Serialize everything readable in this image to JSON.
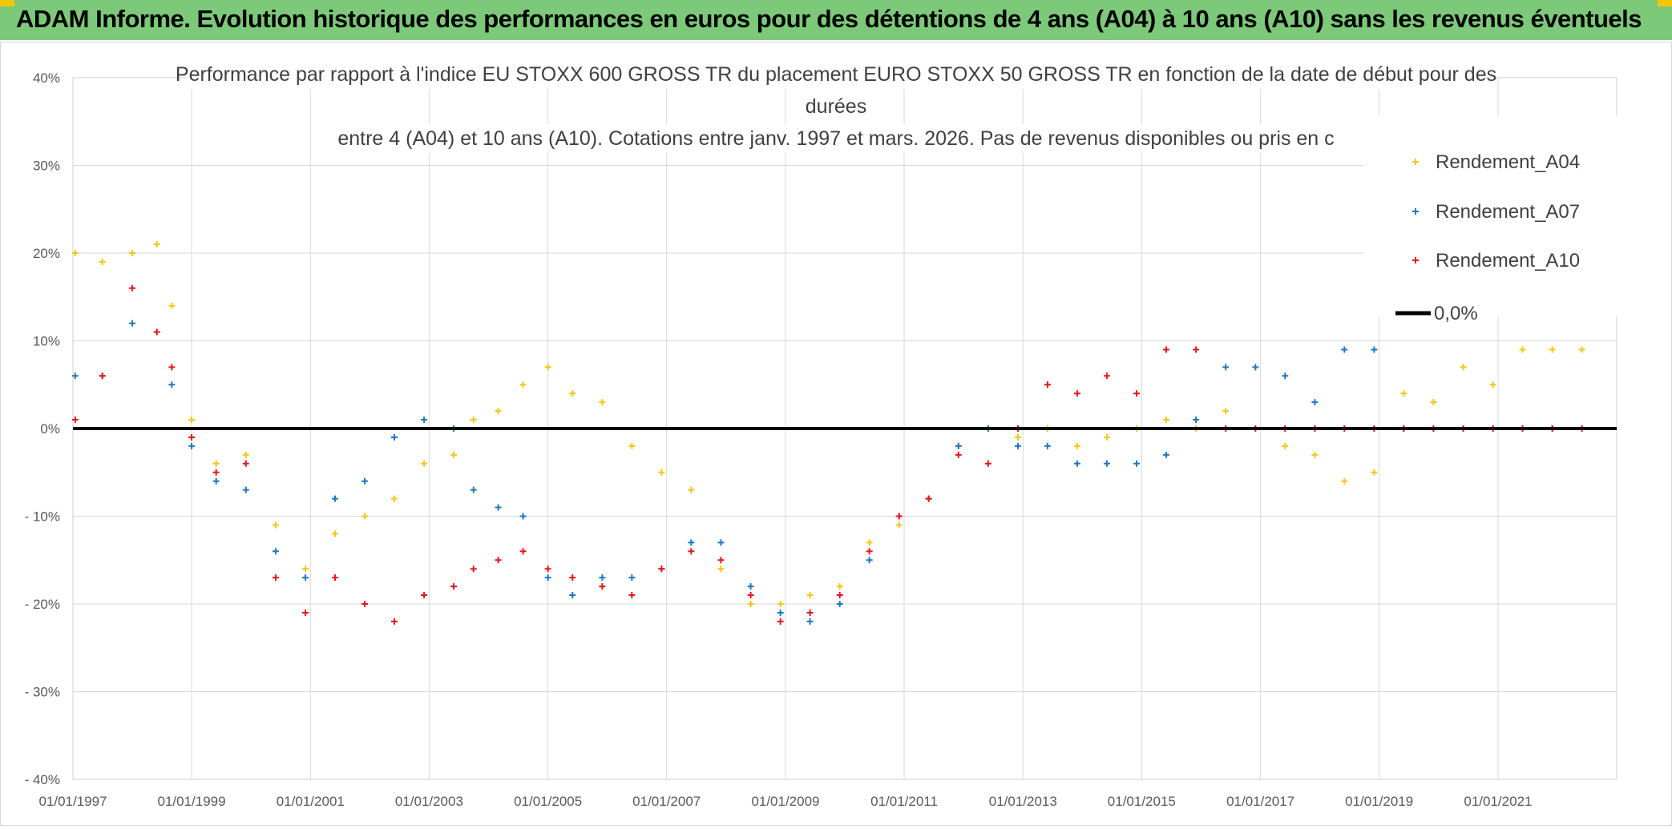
{
  "banner": {
    "title": "ADAM Informe. Evolution historique des performances en euros pour des détentions de 4 ans (A04) à 10 ans (A10) sans les revenus éventuels"
  },
  "colors": {
    "banner_bg": "#7dc97a",
    "accent_corner": "#f2c600",
    "A04": "#f5c518",
    "A07": "#1f77c4",
    "A10": "#e8141c",
    "zero": "#000000",
    "grid": "#d9d9d9"
  },
  "chart_data": {
    "type": "scatter",
    "title_lines": [
      "Performance par rapport à l'indice EU STOXX 600 GROSS TR  du placement EURO STOXX 50 GROSS TR en fonction de la date de début pour des",
      "durées",
      "entre 4 (A04) et 10 ans (A10). Cotations entre janv. 1997 et mars. 2026. Pas de revenus disponibles ou pris en c"
    ],
    "xlabel": "",
    "ylabel": "",
    "x_tick_labels": [
      "01/01/1997",
      "01/01/1999",
      "01/01/2001",
      "01/01/2003",
      "01/01/2005",
      "01/01/2007",
      "01/01/2009",
      "01/01/2011",
      "01/01/2013",
      "01/01/2015",
      "01/01/2017",
      "01/01/2019",
      "01/01/2021"
    ],
    "xlim": [
      "1997-01-01",
      "2023-01-01"
    ],
    "ylim": [
      -40,
      40
    ],
    "y_ticks": [
      40,
      30,
      20,
      10,
      0,
      -10,
      -20,
      -30,
      -40
    ],
    "y_tick_labels": [
      "40%",
      "30%",
      "20%",
      "10%",
      "0%",
      "- 10%",
      "- 20%",
      "- 30%",
      "- 40%"
    ],
    "grid": true,
    "legend_position": "top-right",
    "series": [
      {
        "name": "Rendement_A04",
        "marker": "plus",
        "points": [
          [
            "1997-01-15",
            20
          ],
          [
            "1997-07-01",
            19
          ],
          [
            "1998-01-01",
            20
          ],
          [
            "1998-06-01",
            21
          ],
          [
            "1998-09-01",
            14
          ],
          [
            "1999-01-01",
            1
          ],
          [
            "1999-06-01",
            -4
          ],
          [
            "1999-12-01",
            -3
          ],
          [
            "2000-06-01",
            -11
          ],
          [
            "2000-12-01",
            -16
          ],
          [
            "2001-06-01",
            -12
          ],
          [
            "2001-12-01",
            -10
          ],
          [
            "2002-06-01",
            -8
          ],
          [
            "2002-12-01",
            -4
          ],
          [
            "2003-06-01",
            -3
          ],
          [
            "2003-10-01",
            1
          ],
          [
            "2004-03-01",
            2
          ],
          [
            "2004-08-01",
            5
          ],
          [
            "2005-01-01",
            7
          ],
          [
            "2005-06-01",
            4
          ],
          [
            "2005-12-01",
            3
          ],
          [
            "2006-06-01",
            -2
          ],
          [
            "2006-12-01",
            -5
          ],
          [
            "2007-06-01",
            -7
          ],
          [
            "2007-12-01",
            -16
          ],
          [
            "2008-06-01",
            -20
          ],
          [
            "2008-12-01",
            -20
          ],
          [
            "2009-06-01",
            -19
          ],
          [
            "2009-12-01",
            -18
          ],
          [
            "2010-06-01",
            -13
          ],
          [
            "2010-12-01",
            -11
          ],
          [
            "2011-06-01",
            -8
          ],
          [
            "2011-12-01",
            -2
          ],
          [
            "2012-06-01",
            0
          ],
          [
            "2012-12-01",
            -1
          ],
          [
            "2013-06-01",
            0
          ],
          [
            "2013-12-01",
            -2
          ],
          [
            "2014-06-01",
            -1
          ],
          [
            "2014-12-01",
            0
          ],
          [
            "2015-06-01",
            1
          ],
          [
            "2015-12-01",
            0
          ],
          [
            "2016-06-01",
            2
          ],
          [
            "2016-12-01",
            0
          ],
          [
            "2017-06-01",
            -2
          ],
          [
            "2017-12-01",
            -3
          ],
          [
            "2018-06-01",
            -6
          ],
          [
            "2018-12-01",
            -5
          ],
          [
            "2019-06-01",
            4
          ],
          [
            "2019-12-01",
            3
          ],
          [
            "2020-06-01",
            7
          ],
          [
            "2020-12-01",
            5
          ],
          [
            "2021-06-01",
            9
          ],
          [
            "2021-12-01",
            9
          ],
          [
            "2022-06-01",
            9
          ]
        ]
      },
      {
        "name": "Rendement_A07",
        "marker": "plus",
        "points": [
          [
            "1997-01-15",
            6
          ],
          [
            "1997-07-01",
            6
          ],
          [
            "1998-01-01",
            12
          ],
          [
            "1998-06-01",
            11
          ],
          [
            "1998-09-01",
            5
          ],
          [
            "1999-01-01",
            -2
          ],
          [
            "1999-06-01",
            -6
          ],
          [
            "1999-12-01",
            -7
          ],
          [
            "2000-06-01",
            -14
          ],
          [
            "2000-12-01",
            -17
          ],
          [
            "2001-06-01",
            -8
          ],
          [
            "2001-12-01",
            -6
          ],
          [
            "2002-06-01",
            -1
          ],
          [
            "2002-12-01",
            1
          ],
          [
            "2003-06-01",
            0
          ],
          [
            "2003-10-01",
            -7
          ],
          [
            "2004-03-01",
            -9
          ],
          [
            "2004-08-01",
            -10
          ],
          [
            "2005-01-01",
            -17
          ],
          [
            "2005-06-01",
            -19
          ],
          [
            "2005-12-01",
            -17
          ],
          [
            "2006-06-01",
            -17
          ],
          [
            "2006-12-01",
            -16
          ],
          [
            "2007-06-01",
            -13
          ],
          [
            "2007-12-01",
            -13
          ],
          [
            "2008-06-01",
            -18
          ],
          [
            "2008-12-01",
            -21
          ],
          [
            "2009-06-01",
            -22
          ],
          [
            "2009-12-01",
            -20
          ],
          [
            "2010-06-01",
            -15
          ],
          [
            "2010-12-01",
            -10
          ],
          [
            "2011-06-01",
            -8
          ],
          [
            "2011-12-01",
            -2
          ],
          [
            "2012-06-01",
            0
          ],
          [
            "2012-12-01",
            -2
          ],
          [
            "2013-06-01",
            -2
          ],
          [
            "2013-12-01",
            -4
          ],
          [
            "2014-06-01",
            -4
          ],
          [
            "2014-12-01",
            -4
          ],
          [
            "2015-06-01",
            -3
          ],
          [
            "2015-12-01",
            1
          ],
          [
            "2016-06-01",
            7
          ],
          [
            "2016-12-01",
            7
          ],
          [
            "2017-06-01",
            6
          ],
          [
            "2017-12-01",
            3
          ],
          [
            "2018-06-01",
            9
          ],
          [
            "2018-12-01",
            9
          ],
          [
            "2019-06-01",
            0
          ],
          [
            "2019-12-01",
            0
          ],
          [
            "2020-06-01",
            0
          ],
          [
            "2020-12-01",
            0
          ],
          [
            "2021-06-01",
            0
          ],
          [
            "2021-12-01",
            0
          ],
          [
            "2022-06-01",
            0
          ]
        ]
      },
      {
        "name": "Rendement_A10",
        "marker": "plus",
        "points": [
          [
            "1997-01-15",
            1
          ],
          [
            "1997-07-01",
            6
          ],
          [
            "1998-01-01",
            16
          ],
          [
            "1998-06-01",
            11
          ],
          [
            "1998-09-01",
            7
          ],
          [
            "1999-01-01",
            -1
          ],
          [
            "1999-06-01",
            -5
          ],
          [
            "1999-12-01",
            -4
          ],
          [
            "2000-06-01",
            -17
          ],
          [
            "2000-12-01",
            -21
          ],
          [
            "2001-06-01",
            -17
          ],
          [
            "2001-12-01",
            -20
          ],
          [
            "2002-06-01",
            -22
          ],
          [
            "2002-12-01",
            -19
          ],
          [
            "2003-06-01",
            -18
          ],
          [
            "2003-10-01",
            -16
          ],
          [
            "2004-03-01",
            -15
          ],
          [
            "2004-08-01",
            -14
          ],
          [
            "2005-01-01",
            -16
          ],
          [
            "2005-06-01",
            -17
          ],
          [
            "2005-12-01",
            -18
          ],
          [
            "2006-06-01",
            -19
          ],
          [
            "2006-12-01",
            -16
          ],
          [
            "2007-06-01",
            -14
          ],
          [
            "2007-12-01",
            -15
          ],
          [
            "2008-06-01",
            -19
          ],
          [
            "2008-12-01",
            -22
          ],
          [
            "2009-06-01",
            -21
          ],
          [
            "2009-12-01",
            -19
          ],
          [
            "2010-06-01",
            -14
          ],
          [
            "2010-12-01",
            -10
          ],
          [
            "2011-06-01",
            -8
          ],
          [
            "2011-12-01",
            -3
          ],
          [
            "2012-06-01",
            -4
          ],
          [
            "2012-12-01",
            0
          ],
          [
            "2013-06-01",
            5
          ],
          [
            "2013-12-01",
            4
          ],
          [
            "2014-06-01",
            6
          ],
          [
            "2014-12-01",
            4
          ],
          [
            "2015-06-01",
            9
          ],
          [
            "2015-12-01",
            9
          ],
          [
            "2016-06-01",
            0
          ],
          [
            "2016-12-01",
            0
          ],
          [
            "2017-06-01",
            0
          ],
          [
            "2017-12-01",
            0
          ],
          [
            "2018-06-01",
            0
          ],
          [
            "2018-12-01",
            0
          ],
          [
            "2019-06-01",
            0
          ],
          [
            "2019-12-01",
            0
          ],
          [
            "2020-06-01",
            0
          ],
          [
            "2020-12-01",
            0
          ],
          [
            "2021-06-01",
            0
          ],
          [
            "2021-12-01",
            0
          ],
          [
            "2022-06-01",
            0
          ]
        ]
      }
    ],
    "reference_line": {
      "name": "0,0%",
      "y": 0
    }
  }
}
